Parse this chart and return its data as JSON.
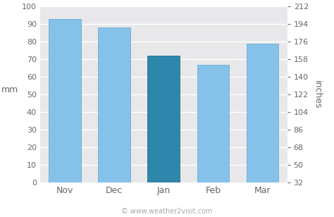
{
  "categories": [
    "Nov",
    "Dec",
    "Jan",
    "Feb",
    "Mar"
  ],
  "values": [
    93,
    88,
    72,
    67,
    79
  ],
  "bar_colors": [
    "#85c1e9",
    "#85c1e9",
    "#2e86ab",
    "#85c1e9",
    "#85c1e9"
  ],
  "bar_edgecolors": [
    "#6aafd6",
    "#6aafd6",
    "#246e8e",
    "#6aafd6",
    "#6aafd6"
  ],
  "ylim_left": [
    0,
    100
  ],
  "yticks_left": [
    0,
    10,
    20,
    30,
    40,
    50,
    60,
    70,
    80,
    90,
    100
  ],
  "ylabel_left": "mm",
  "yticks_right_labels": [
    "32",
    "50",
    "68",
    "86",
    "104",
    "122",
    "140",
    "158",
    "176",
    "194",
    "212"
  ],
  "ylabel_right": "inches",
  "figure_bg": "#ffffff",
  "plot_bg_color": "#e8e8ea",
  "grid_color": "#ffffff",
  "copyright_text": "© www.weather2visit.com",
  "copyright_color": "#aaaaaa",
  "tick_label_color": "#666666",
  "axis_label_color": "#666666",
  "copyright_fontsize": 7,
  "tick_fontsize": 8,
  "xlabel_fontsize": 9,
  "ylabel_fontsize": 9
}
